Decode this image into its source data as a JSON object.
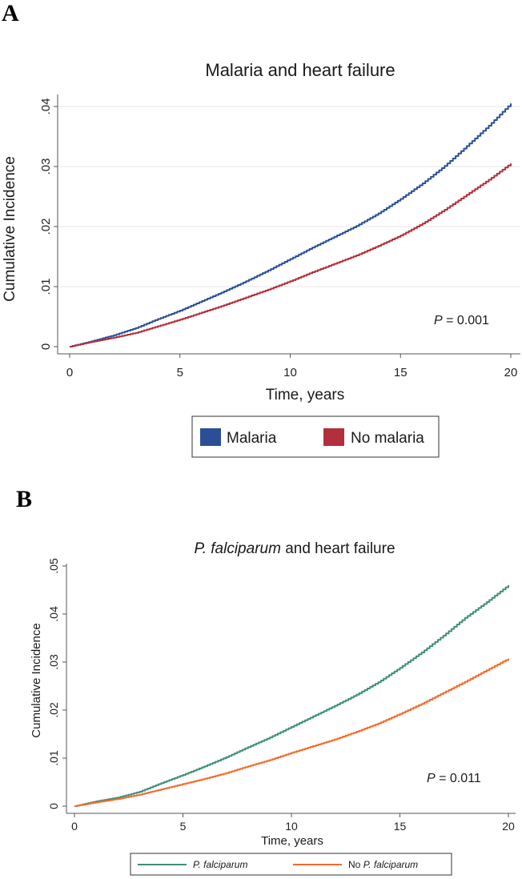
{
  "chart_data": [
    {
      "panel_label": "A",
      "type": "line",
      "title": "Malaria and heart failure",
      "xlabel": "Time, years",
      "ylabel": "Cumulative Incidence",
      "xlim": [
        0,
        20
      ],
      "ylim": [
        0,
        0.04
      ],
      "xticks": [
        0,
        5,
        10,
        15,
        20
      ],
      "xtick_labels": [
        "0",
        "5",
        "10",
        "15",
        "20"
      ],
      "yticks": [
        0,
        0.01,
        0.02,
        0.03,
        0.04
      ],
      "ytick_labels": [
        "0",
        ".01",
        ".02",
        ".03",
        ".04"
      ],
      "grid": true,
      "annotation": {
        "italic": "P",
        "text": " = 0.001"
      },
      "legend_position": "bottom-center",
      "series": [
        {
          "name": "Malaria",
          "color": "#2a4f96",
          "x": [
            0,
            1,
            2,
            3,
            4,
            5,
            6,
            7,
            8,
            9,
            10,
            11,
            12,
            13,
            14,
            15,
            16,
            17,
            18,
            19,
            20
          ],
          "values": [
            0,
            0.0009,
            0.0019,
            0.0031,
            0.0046,
            0.006,
            0.0076,
            0.0092,
            0.0109,
            0.0127,
            0.0146,
            0.0165,
            0.0183,
            0.0201,
            0.0222,
            0.0246,
            0.0272,
            0.0301,
            0.0334,
            0.0368,
            0.0405
          ]
        },
        {
          "name": "No malaria",
          "color": "#b22f3c",
          "x": [
            0,
            1,
            2,
            3,
            4,
            5,
            6,
            7,
            8,
            9,
            10,
            11,
            12,
            13,
            14,
            15,
            16,
            17,
            18,
            19,
            20
          ],
          "values": [
            0,
            0.0008,
            0.0015,
            0.0023,
            0.0034,
            0.0045,
            0.0057,
            0.0069,
            0.0082,
            0.0095,
            0.0109,
            0.0124,
            0.0138,
            0.0152,
            0.0168,
            0.0185,
            0.0205,
            0.0228,
            0.0253,
            0.0278,
            0.0305
          ]
        }
      ]
    },
    {
      "panel_label": "B",
      "type": "line",
      "title_italic": "P. falciparum",
      "title_rest": " and heart failure",
      "xlabel": "Time, years",
      "ylabel": "Cumulative Incidence",
      "xlim": [
        0,
        20
      ],
      "ylim": [
        0,
        0.05
      ],
      "xticks": [
        0,
        5,
        10,
        15,
        20
      ],
      "xtick_labels": [
        "0",
        "5",
        "10",
        "15",
        "20"
      ],
      "yticks": [
        0,
        0.01,
        0.02,
        0.03,
        0.04,
        0.05
      ],
      "ytick_labels": [
        "0",
        ".01",
        ".02",
        ".03",
        ".04",
        ".05"
      ],
      "grid": false,
      "annotation": {
        "italic": "P",
        "text": " = 0.011"
      },
      "legend_position": "bottom-center",
      "series": [
        {
          "name": "P. falciparum",
          "name_prefix": "",
          "name_italic": "P. falciparum",
          "color": "#3f8f7a",
          "x": [
            0,
            1,
            2,
            3,
            4,
            5,
            6,
            7,
            8,
            9,
            10,
            11,
            12,
            13,
            14,
            15,
            16,
            17,
            18,
            19,
            20
          ],
          "values": [
            0,
            0.001,
            0.0018,
            0.003,
            0.0048,
            0.0065,
            0.0083,
            0.0102,
            0.0123,
            0.0143,
            0.0165,
            0.0187,
            0.0209,
            0.0232,
            0.0258,
            0.0288,
            0.032,
            0.0355,
            0.0392,
            0.0425,
            0.046
          ]
        },
        {
          "name": "No P. falciparum",
          "name_prefix": "No ",
          "name_italic": "P. falciparum",
          "color": "#f26c2b",
          "x": [
            0,
            1,
            2,
            3,
            4,
            5,
            6,
            7,
            8,
            9,
            10,
            11,
            12,
            13,
            14,
            15,
            16,
            17,
            18,
            19,
            20
          ],
          "values": [
            0,
            0.0008,
            0.0015,
            0.0024,
            0.0035,
            0.0046,
            0.0057,
            0.0069,
            0.0083,
            0.0096,
            0.0111,
            0.0125,
            0.0139,
            0.0155,
            0.0172,
            0.0192,
            0.0213,
            0.0236,
            0.0259,
            0.0283,
            0.0307
          ]
        }
      ]
    }
  ]
}
